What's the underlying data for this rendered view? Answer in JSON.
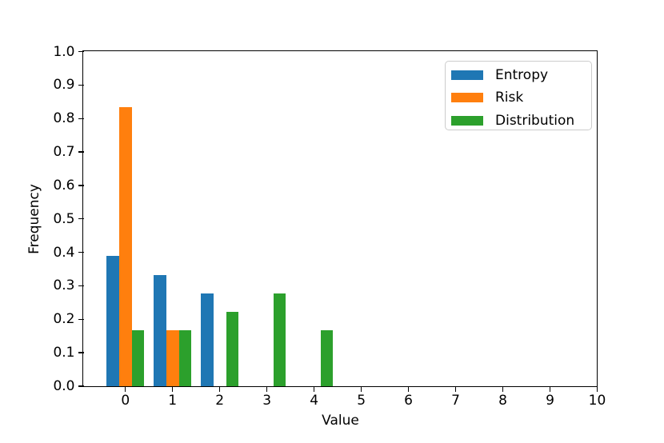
{
  "chart_data": {
    "type": "bar",
    "subtype": "grouped-histogram",
    "title": "",
    "xlabel": "Value",
    "ylabel": "Frequency",
    "xlim": [
      -0.886,
      10.0
    ],
    "ylim": [
      0.0,
      1.0
    ],
    "grid": false,
    "bin_edges": [
      -0.5,
      0.5,
      1.5,
      2.5,
      3.5,
      4.5
    ],
    "bar_group": {
      "relative_width": 0.8,
      "bars_per_bin": 3
    },
    "xticks": {
      "values": [
        0,
        1,
        2,
        3,
        4,
        5,
        6,
        7,
        8,
        9,
        10
      ],
      "labels": [
        "0",
        "1",
        "2",
        "3",
        "4",
        "5",
        "6",
        "7",
        "8",
        "9",
        "10"
      ]
    },
    "yticks": {
      "values": [
        0.0,
        0.1,
        0.2,
        0.3,
        0.4,
        0.5,
        0.6,
        0.7,
        0.8,
        0.9,
        1.0
      ],
      "labels": [
        "0.0",
        "0.1",
        "0.2",
        "0.3",
        "0.4",
        "0.5",
        "0.6",
        "0.7",
        "0.8",
        "0.9",
        "1.0"
      ]
    },
    "series": [
      {
        "name": "Entropy",
        "color": "#1f77b4",
        "values": [
          0.3889,
          0.3333,
          0.2778,
          0,
          0
        ]
      },
      {
        "name": "Risk",
        "color": "#ff7f0e",
        "values": [
          0.8333,
          0.1667,
          0,
          0,
          0
        ]
      },
      {
        "name": "Distribution",
        "color": "#2ca02c",
        "values": [
          0.1667,
          0.1667,
          0.2222,
          0.2778,
          0.1667
        ]
      }
    ],
    "legend": {
      "position": "upper-right",
      "entries": [
        "Entropy",
        "Risk",
        "Distribution"
      ]
    }
  },
  "colors": {
    "background": "#ffffff",
    "axis": "#000000",
    "legend_border": "#cccccc"
  }
}
